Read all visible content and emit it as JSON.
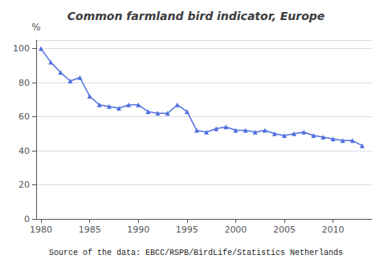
{
  "chart_data": {
    "type": "line",
    "title": "Common farmland bird indicator, Europe",
    "ylabel": "%",
    "annotation": "Source of the data: EBCC/RSPB/BirdLife/Statistics Netherlands",
    "x": [
      1980,
      1981,
      1982,
      1983,
      1984,
      1985,
      1986,
      1987,
      1988,
      1989,
      1990,
      1991,
      1992,
      1993,
      1994,
      1995,
      1996,
      1997,
      1998,
      1999,
      2000,
      2001,
      2002,
      2003,
      2004,
      2005,
      2006,
      2007,
      2008,
      2009,
      2010,
      2011,
      2012,
      2013
    ],
    "values": [
      100,
      92,
      86,
      81,
      83,
      72,
      67,
      66,
      65,
      67,
      67,
      63,
      62,
      62,
      67,
      63,
      52,
      51,
      53,
      54,
      52,
      52,
      51,
      52,
      50,
      49,
      50,
      51,
      49,
      48,
      47,
      46,
      46,
      43
    ],
    "xlim": [
      1979.5,
      2014
    ],
    "ylim": [
      0,
      105
    ],
    "xticks": [
      1980,
      1985,
      1990,
      1995,
      2000,
      2005,
      2010
    ],
    "yticks": [
      0,
      20,
      40,
      60,
      80,
      100
    ],
    "grid": true,
    "marker": "triangle"
  }
}
